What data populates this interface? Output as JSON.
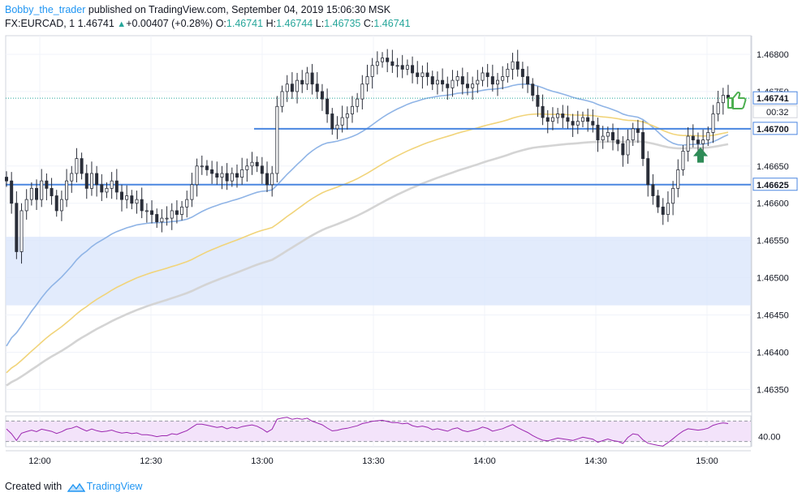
{
  "header": {
    "author": "Bobby_the_trader",
    "published": "published on TradingView.com, September 04, 2019 15:06:30 MSK",
    "symbol": "FX:EURCAD, 1",
    "last": "1.46741",
    "change": "+0.00407 (+0.28%)",
    "o_label": "O:",
    "o": "1.46741",
    "h_label": "H:",
    "h": "1.46744",
    "l_label": "L:",
    "l": "1.46735",
    "c_label": "C:",
    "c": "1.46741"
  },
  "footer": {
    "created_with": "Created with",
    "brand": "TradingView"
  },
  "colors": {
    "up_candle": "#ffffff",
    "down_candle": "#2a2e39",
    "wick": "#2a2e39",
    "ma_fast": "#8fb4e6",
    "ma_mid": "#f1d47a",
    "ma_slow": "#d4d4d4",
    "level_line": "#4a86e0",
    "zone_fill": "#dbe6fb",
    "rsi_line": "#9c27b0",
    "rsi_band": "#f3e3fa",
    "arrow": "#2e8b57",
    "thumb": "#4caf50"
  },
  "chart_data": {
    "type": "candlestick",
    "price_axis": {
      "ticks": [
        "1.46800",
        "1.46750",
        "1.46700",
        "1.46650",
        "1.46600",
        "1.46550",
        "1.46500",
        "1.46450",
        "1.46400",
        "1.46350"
      ],
      "ylim": [
        1.4632,
        1.46825
      ]
    },
    "time_axis": {
      "ticks": [
        "12:00",
        "12:30",
        "13:00",
        "13:30",
        "14:00",
        "14:30",
        "15:00"
      ]
    },
    "price_labels": {
      "last": "1.46741",
      "countdown": "00:32",
      "level_high": "1.46700",
      "level_low": "1.46625"
    },
    "levels": [
      1.467,
      1.46625
    ],
    "zone": [
      1.46463,
      1.46555
    ],
    "last_price": 1.46741,
    "closes": [
      1.4663,
      1.466,
      1.46535,
      1.4659,
      1.46605,
      1.4662,
      1.46605,
      1.4663,
      1.4662,
      1.4661,
      1.4659,
      1.46605,
      1.4663,
      1.4664,
      1.4666,
      1.4664,
      1.4662,
      1.4664,
      1.46625,
      1.46615,
      1.4662,
      1.4663,
      1.46615,
      1.46605,
      1.4661,
      1.466,
      1.46605,
      1.4659,
      1.4659,
      1.46585,
      1.46575,
      1.4658,
      1.4658,
      1.4659,
      1.46585,
      1.46595,
      1.46605,
      1.46625,
      1.4665,
      1.4665,
      1.46645,
      1.4664,
      1.46635,
      1.4664,
      1.4663,
      1.4664,
      1.46635,
      1.46645,
      1.4665,
      1.46655,
      1.4665,
      1.4664,
      1.46625,
      1.4664,
      1.4673,
      1.4675,
      1.4676,
      1.4675,
      1.46765,
      1.4676,
      1.46775,
      1.4676,
      1.4675,
      1.4674,
      1.4672,
      1.467,
      1.46705,
      1.46715,
      1.4672,
      1.4673,
      1.4674,
      1.4676,
      1.4677,
      1.46785,
      1.4679,
      1.46795,
      1.4679,
      1.46785,
      1.46785,
      1.4678,
      1.46785,
      1.46775,
      1.4677,
      1.46775,
      1.4677,
      1.4676,
      1.46765,
      1.4676,
      1.46755,
      1.46765,
      1.4677,
      1.4676,
      1.46755,
      1.4676,
      1.46765,
      1.46775,
      1.4677,
      1.4676,
      1.46765,
      1.4677,
      1.4678,
      1.4679,
      1.4678,
      1.4677,
      1.4676,
      1.46745,
      1.4673,
      1.46715,
      1.4671,
      1.46715,
      1.4672,
      1.46715,
      1.4671,
      1.46705,
      1.4671,
      1.46715,
      1.4671,
      1.46705,
      1.46685,
      1.4669,
      1.46695,
      1.46685,
      1.4668,
      1.46665,
      1.46685,
      1.467,
      1.46695,
      1.4666,
      1.46625,
      1.4661,
      1.46595,
      1.46585,
      1.466,
      1.4662,
      1.46645,
      1.4667,
      1.4669,
      1.46685,
      1.4668,
      1.46685,
      1.46695,
      1.4672,
      1.46735,
      1.46745,
      1.46741
    ],
    "rsi": {
      "ticks": [
        "40.00"
      ],
      "upper": 70,
      "lower": 30,
      "ylim": [
        20,
        80
      ]
    },
    "moving_averages": [
      "fast",
      "medium",
      "slow"
    ]
  }
}
